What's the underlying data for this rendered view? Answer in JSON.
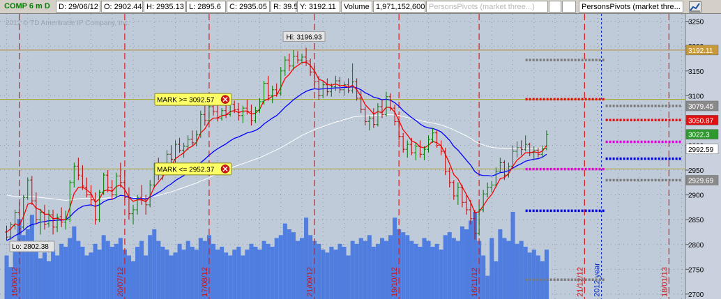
{
  "header": {
    "symbol": "COMP 6 m D",
    "date": "D: 29/06/12",
    "open": "O: 2902.44",
    "high": "H: 2935.13",
    "low": "L: 2895.6",
    "close": "C: 2935.05",
    "range": "R: 39.53",
    "y": "Y: 3192.11",
    "volume_label": "Volume",
    "volume_value": "1,971,152,600",
    "pending_study": "PersonsPivots (market three...)",
    "study": "PersonsPivots (market thre..."
  },
  "icons": {
    "chart_settings": "chart-settings-icon",
    "close": "close-icon"
  },
  "colors": {
    "background": "#c0cbd9",
    "up": "#007a00",
    "down": "#c00000",
    "ema_fast": "#ff0000",
    "ema_mid": "#0000ff",
    "ema_slow": "#ffffff",
    "volume": "#4f7ee0",
    "alert": "#ffff66"
  },
  "chart_data": {
    "type": "candlestick",
    "watermark": "2012 © TD Ameritrade IP Company, Inc.",
    "ylim": [
      2690,
      3265
    ],
    "y_ticks": [
      2700,
      2750,
      2800,
      2850,
      2900,
      2950,
      3000,
      3050,
      3100,
      3150,
      3200,
      3250
    ],
    "x_date_labels": [
      {
        "label": "15/06/12",
        "index": 3
      },
      {
        "label": "20/07/12",
        "index": 28
      },
      {
        "label": "17/08/12",
        "index": 48
      },
      {
        "label": "21/09/12",
        "index": 73
      },
      {
        "label": "19/10/12",
        "index": 93
      },
      {
        "label": "16/11/12",
        "index": 112
      },
      {
        "label": "21/12/12",
        "index": 137
      },
      {
        "label": "18/01/13",
        "index": 157
      }
    ],
    "year_marker": {
      "label": "2012 year",
      "index": 141
    },
    "hi_label": "Hi: 3196.93",
    "lo_label": "Lo: 2802.38",
    "hline": 3192.11,
    "alerts": [
      {
        "label": "MARK >= 3092.57",
        "value": 3092.57
      },
      {
        "label": "MARK <= 2952.37",
        "value": 2952.37
      }
    ],
    "price_tags": [
      {
        "text": "3192.11",
        "value": 3192.11,
        "bg": "#c89a3a",
        "fg": "#ffffff"
      },
      {
        "text": "3079.45",
        "value": 3079.45,
        "bg": "#8a8a8a",
        "fg": "#ffffff"
      },
      {
        "text": "3050.87",
        "value": 3050.87,
        "bg": "#e01010",
        "fg": "#ffffff"
      },
      {
        "text": "3022.3",
        "value": 3022.3,
        "bg": "#2e9a2e",
        "fg": "#ffffff"
      },
      {
        "text": "2992.59",
        "value": 2992.59,
        "bg": "#ffffff",
        "fg": "#000000"
      },
      {
        "text": "2929.69",
        "value": 2929.69,
        "bg": "#8a8a8a",
        "fg": "#ffffff"
      }
    ],
    "pivots": [
      {
        "value": 3172,
        "color": "#7a7a7a",
        "from": 123,
        "to": 142
      },
      {
        "value": 3093,
        "color": "#e01010",
        "from": 123,
        "to": 142
      },
      {
        "value": 3079.45,
        "color": "#7a7a7a",
        "from": 142,
        "to": 160
      },
      {
        "value": 3050.87,
        "color": "#e01010",
        "from": 142,
        "to": 160
      },
      {
        "value": 3007,
        "color": "#e000e0",
        "from": 142,
        "to": 160
      },
      {
        "value": 2973,
        "color": "#0000e0",
        "from": 142,
        "to": 160
      },
      {
        "value": 2952,
        "color": "#e000e0",
        "from": 123,
        "to": 142
      },
      {
        "value": 2929.69,
        "color": "#7a7a7a",
        "from": 142,
        "to": 160
      },
      {
        "value": 2868,
        "color": "#0000e0",
        "from": 123,
        "to": 142
      },
      {
        "value": 2729,
        "color": "#7a7a7a",
        "from": 123,
        "to": 142
      }
    ],
    "ohlc": [
      [
        2825,
        2838,
        2808,
        2815
      ],
      [
        2815,
        2845,
        2810,
        2840
      ],
      [
        2838,
        2870,
        2830,
        2865
      ],
      [
        2865,
        2885,
        2820,
        2832
      ],
      [
        2835,
        2900,
        2830,
        2895
      ],
      [
        2895,
        2935,
        2890,
        2930
      ],
      [
        2930,
        2938,
        2880,
        2888
      ],
      [
        2888,
        2905,
        2840,
        2850
      ],
      [
        2850,
        2872,
        2820,
        2865
      ],
      [
        2865,
        2880,
        2830,
        2840
      ],
      [
        2842,
        2870,
        2835,
        2860
      ],
      [
        2860,
        2870,
        2820,
        2835
      ],
      [
        2835,
        2862,
        2825,
        2855
      ],
      [
        2856,
        2875,
        2835,
        2845
      ],
      [
        2845,
        2868,
        2830,
        2850
      ],
      [
        2850,
        2930,
        2845,
        2925
      ],
      [
        2925,
        2965,
        2915,
        2958
      ],
      [
        2958,
        2975,
        2930,
        2940
      ],
      [
        2938,
        2960,
        2910,
        2918
      ],
      [
        2915,
        2935,
        2895,
        2900
      ],
      [
        2900,
        2920,
        2880,
        2890
      ],
      [
        2890,
        2905,
        2840,
        2850
      ],
      [
        2850,
        2910,
        2845,
        2905
      ],
      [
        2905,
        2945,
        2900,
        2940
      ],
      [
        2940,
        2950,
        2905,
        2915
      ],
      [
        2915,
        2930,
        2890,
        2900
      ],
      [
        2900,
        2945,
        2895,
        2938
      ],
      [
        2938,
        2965,
        2915,
        2925
      ],
      [
        2925,
        2950,
        2890,
        2895
      ],
      [
        2895,
        2915,
        2850,
        2862
      ],
      [
        2862,
        2880,
        2840,
        2870
      ],
      [
        2870,
        2900,
        2860,
        2895
      ],
      [
        2895,
        2920,
        2880,
        2890
      ],
      [
        2890,
        2900,
        2860,
        2880
      ],
      [
        2880,
        2930,
        2875,
        2920
      ],
      [
        2920,
        2965,
        2915,
        2955
      ],
      [
        2955,
        2975,
        2930,
        2945
      ],
      [
        2945,
        2960,
        2930,
        2955
      ],
      [
        2955,
        2990,
        2950,
        2982
      ],
      [
        2982,
        3000,
        2960,
        2972
      ],
      [
        2972,
        3010,
        2965,
        3002
      ],
      [
        3002,
        3015,
        2985,
        2990
      ],
      [
        2990,
        3005,
        2975,
        2998
      ],
      [
        2998,
        3020,
        2990,
        3012
      ],
      [
        3012,
        3030,
        3000,
        3005
      ],
      [
        3005,
        3030,
        2998,
        3022
      ],
      [
        3022,
        3070,
        3015,
        3062
      ],
      [
        3062,
        3080,
        3040,
        3050
      ],
      [
        3050,
        3085,
        3045,
        3078
      ],
      [
        3078,
        3092,
        3060,
        3068
      ],
      [
        3068,
        3082,
        3048,
        3055
      ],
      [
        3055,
        3075,
        3050,
        3070
      ],
      [
        3070,
        3090,
        3055,
        3062
      ],
      [
        3062,
        3088,
        3058,
        3083
      ],
      [
        3083,
        3090,
        3065,
        3072
      ],
      [
        3072,
        3085,
        3050,
        3060
      ],
      [
        3060,
        3080,
        3045,
        3075
      ],
      [
        3075,
        3092,
        3062,
        3068
      ],
      [
        3068,
        3082,
        3040,
        3050
      ],
      [
        3050,
        3078,
        3045,
        3070
      ],
      [
        3070,
        3095,
        3065,
        3088
      ],
      [
        3088,
        3130,
        3082,
        3125
      ],
      [
        3125,
        3140,
        3090,
        3100
      ],
      [
        3100,
        3120,
        3085,
        3112
      ],
      [
        3112,
        3125,
        3098,
        3105
      ],
      [
        3105,
        3158,
        3100,
        3150
      ],
      [
        3150,
        3180,
        3140,
        3172
      ],
      [
        3172,
        3185,
        3150,
        3160
      ],
      [
        3160,
        3192,
        3152,
        3180
      ],
      [
        3180,
        3190,
        3165,
        3172
      ],
      [
        3172,
        3185,
        3165,
        3178
      ],
      [
        3178,
        3196.93,
        3160,
        3170
      ],
      [
        3170,
        3175,
        3140,
        3148
      ],
      [
        3148,
        3160,
        3120,
        3128
      ],
      [
        3128,
        3140,
        3092,
        3100
      ],
      [
        3100,
        3130,
        3095,
        3122
      ],
      [
        3122,
        3135,
        3100,
        3108
      ],
      [
        3108,
        3125,
        3098,
        3118
      ],
      [
        3118,
        3140,
        3110,
        3130
      ],
      [
        3130,
        3138,
        3105,
        3112
      ],
      [
        3112,
        3128,
        3100,
        3122
      ],
      [
        3122,
        3135,
        3105,
        3110
      ],
      [
        3110,
        3165,
        3105,
        3128
      ],
      [
        3128,
        3135,
        3090,
        3095
      ],
      [
        3095,
        3110,
        3065,
        3072
      ],
      [
        3072,
        3078,
        3040,
        3048
      ],
      [
        3048,
        3060,
        3030,
        3055
      ],
      [
        3055,
        3075,
        3035,
        3042
      ],
      [
        3042,
        3085,
        3038,
        3078
      ],
      [
        3078,
        3092,
        3055,
        3062
      ],
      [
        3062,
        3108,
        3058,
        3098
      ],
      [
        3098,
        3105,
        3070,
        3075
      ],
      [
        3075,
        3082,
        3040,
        3048
      ],
      [
        3048,
        3055,
        3010,
        3018
      ],
      [
        3018,
        3025,
        2985,
        2992
      ],
      [
        2992,
        3010,
        2975,
        3002
      ],
      [
        3002,
        3015,
        2980,
        2985
      ],
      [
        2985,
        3005,
        2970,
        2998
      ],
      [
        2998,
        3010,
        2975,
        2982
      ],
      [
        2982,
        2998,
        2970,
        2992
      ],
      [
        2992,
        3020,
        2985,
        3012
      ],
      [
        3012,
        3035,
        3005,
        3025
      ],
      [
        3025,
        3030,
        2995,
        3000
      ],
      [
        3000,
        3010,
        2980,
        2988
      ],
      [
        2988,
        2995,
        2940,
        2948
      ],
      [
        2948,
        2955,
        2915,
        2925
      ],
      [
        2925,
        2930,
        2890,
        2898
      ],
      [
        2898,
        2925,
        2880,
        2915
      ],
      [
        2915,
        2920,
        2875,
        2885
      ],
      [
        2885,
        2900,
        2860,
        2870
      ],
      [
        2870,
        2890,
        2840,
        2852
      ],
      [
        2852,
        2870,
        2810,
        2822
      ],
      [
        2822,
        2880,
        2818,
        2870
      ],
      [
        2870,
        2910,
        2865,
        2902
      ],
      [
        2902,
        2925,
        2895,
        2915
      ],
      [
        2915,
        2928,
        2905,
        2920
      ],
      [
        2920,
        2955,
        2915,
        2948
      ],
      [
        2948,
        2975,
        2945,
        2965
      ],
      [
        2965,
        2970,
        2930,
        2940
      ],
      [
        2940,
        2965,
        2935,
        2958
      ],
      [
        2958,
        3000,
        2955,
        2988
      ],
      [
        2988,
        3008,
        2975,
        2995
      ],
      [
        2995,
        3010,
        2980,
        2992
      ],
      [
        2992,
        3020,
        2988,
        3002
      ],
      [
        3002,
        3005,
        2978,
        2985
      ],
      [
        2985,
        2998,
        2970,
        2990
      ],
      [
        2990,
        2995,
        2975,
        2982
      ],
      [
        2982,
        3000,
        2975,
        2993
      ],
      [
        2993,
        3030,
        2990,
        3022.3
      ]
    ],
    "ema_fast": [
      2825,
      2832,
      2842,
      2838,
      2856,
      2881,
      2884,
      2873,
      2870,
      2861,
      2861,
      2852,
      2853,
      2850,
      2850,
      2875,
      2903,
      2915,
      2916,
      2910,
      2903,
      2885,
      2892,
      2908,
      2910,
      2907,
      2917,
      2920,
      2911,
      2895,
      2887,
      2890,
      2890,
      2886,
      2897,
      2916,
      2926,
      2936,
      2951,
      2958,
      2973,
      2979,
      2985,
      2994,
      2998,
      3006,
      3025,
      3033,
      3048,
      3055,
      3055,
      3060,
      3061,
      3068,
      3070,
      3066,
      3069,
      3069,
      3063,
      3065,
      3073,
      3090,
      3093,
      3099,
      3101,
      3117,
      3135,
      3143,
      3155,
      3161,
      3167,
      3168,
      3161,
      3150,
      3133,
      3130,
      3123,
      3121,
      3124,
      3120,
      3121,
      3117,
      3121,
      3112,
      3099,
      3082,
      3073,
      3063,
      3068,
      3066,
      3077,
      3076,
      3067,
      3050,
      3031,
      3021,
      3009,
      3005,
      2997,
      2995,
      3000,
      3008,
      3005,
      2999,
      2982,
      2963,
      2941,
      2932,
      2916,
      2901,
      2885,
      2864,
      2866,
      2878,
      2891,
      2901,
      2917,
      2933,
      2935,
      2943,
      2958,
      2970,
      2977,
      2985,
      2985,
      2987,
      2985,
      2988,
      3000
    ],
    "ema_mid": [
      2808,
      2812,
      2818,
      2822,
      2828,
      2836,
      2840,
      2842,
      2845,
      2846,
      2848,
      2848,
      2849,
      2849,
      2850,
      2856,
      2865,
      2872,
      2877,
      2879,
      2880,
      2877,
      2880,
      2886,
      2890,
      2891,
      2895,
      2899,
      2898,
      2895,
      2893,
      2893,
      2893,
      2892,
      2895,
      2900,
      2905,
      2910,
      2917,
      2922,
      2929,
      2934,
      2939,
      2945,
      2950,
      2956,
      2965,
      2972,
      2980,
      2987,
      2993,
      2998,
      3003,
      3009,
      3014,
      3017,
      3021,
      3025,
      3027,
      3030,
      3035,
      3043,
      3049,
      3055,
      3060,
      3068,
      3077,
      3084,
      3092,
      3098,
      3104,
      3109,
      3112,
      3114,
      3113,
      3114,
      3114,
      3115,
      3116,
      3116,
      3117,
      3117,
      3118,
      3116,
      3112,
      3106,
      3102,
      3097,
      3095,
      3092,
      3093,
      3091,
      3086,
      3079,
      3070,
      3063,
      3056,
      3050,
      3043,
      3038,
      3035,
      3034,
      3031,
      3027,
      3019,
      3010,
      2998,
      2990,
      2980,
      2970,
      2960,
      2947,
      2941,
      2939,
      2939,
      2938,
      2941,
      2945,
      2946,
      2949,
      2954,
      2959,
      2963,
      2968,
      2970,
      2972,
      2973,
      2976,
      2982
    ],
    "ema_slow": [
      2900,
      2898,
      2897,
      2896,
      2896,
      2897,
      2897,
      2896,
      2895,
      2894,
      2893,
      2892,
      2891,
      2890,
      2889,
      2890,
      2891,
      2892,
      2893,
      2893,
      2893,
      2892,
      2892,
      2893,
      2894,
      2894,
      2895,
      2896,
      2896,
      2895,
      2895,
      2895,
      2895,
      2894,
      2895,
      2897,
      2899,
      2901,
      2904,
      2906,
      2909,
      2912,
      2915,
      2918,
      2921,
      2924,
      2928,
      2931,
      2935,
      2939,
      2943,
      2946,
      2950,
      2953,
      2957,
      2960,
      2963,
      2966,
      2969,
      2972,
      2975,
      2979,
      2983,
      2987,
      2991,
      2995,
      3000,
      3005,
      3010,
      3015,
      3020,
      3024,
      3028,
      3032,
      3035,
      3038,
      3041,
      3044,
      3047,
      3049,
      3052,
      3054,
      3057,
      3058,
      3059,
      3059,
      3060,
      3060,
      3061,
      3061,
      3062,
      3062,
      3061,
      3060,
      3058,
      3056,
      3054,
      3052,
      3050,
      3048,
      3046,
      3045,
      3043,
      3041,
      3038,
      3035,
      3031,
      3027,
      3023,
      3019,
      3014,
      3008,
      3004,
      3001,
      2998,
      2996,
      2995,
      2994,
      2993,
      2993,
      2993,
      2993,
      2993,
      2994,
      2994,
      2994,
      2994,
      2995,
      2996
    ],
    "volume": [
      30,
      22,
      40,
      55,
      44,
      48,
      58,
      36,
      28,
      32,
      26,
      34,
      30,
      38,
      36,
      42,
      50,
      40,
      36,
      30,
      32,
      38,
      34,
      44,
      40,
      36,
      38,
      42,
      34,
      30,
      26,
      36,
      40,
      30,
      44,
      48,
      40,
      36,
      34,
      30,
      32,
      38,
      34,
      40,
      36,
      34,
      42,
      40,
      44,
      38,
      34,
      36,
      32,
      30,
      34,
      36,
      30,
      34,
      38,
      36,
      34,
      40,
      38,
      36,
      42,
      44,
      52,
      48,
      46,
      40,
      42,
      56,
      44,
      40,
      38,
      34,
      32,
      36,
      34,
      38,
      36,
      30,
      40,
      38,
      42,
      40,
      44,
      36,
      38,
      42,
      40,
      44,
      56,
      48,
      46,
      44,
      40,
      38,
      36,
      42,
      40,
      36,
      38,
      34,
      44,
      46,
      42,
      40,
      50,
      48,
      54,
      60,
      40,
      30,
      16,
      42,
      26,
      48,
      42,
      40,
      60,
      38,
      40,
      36,
      32,
      34,
      30,
      26,
      34
    ],
    "volume_max": 60
  }
}
